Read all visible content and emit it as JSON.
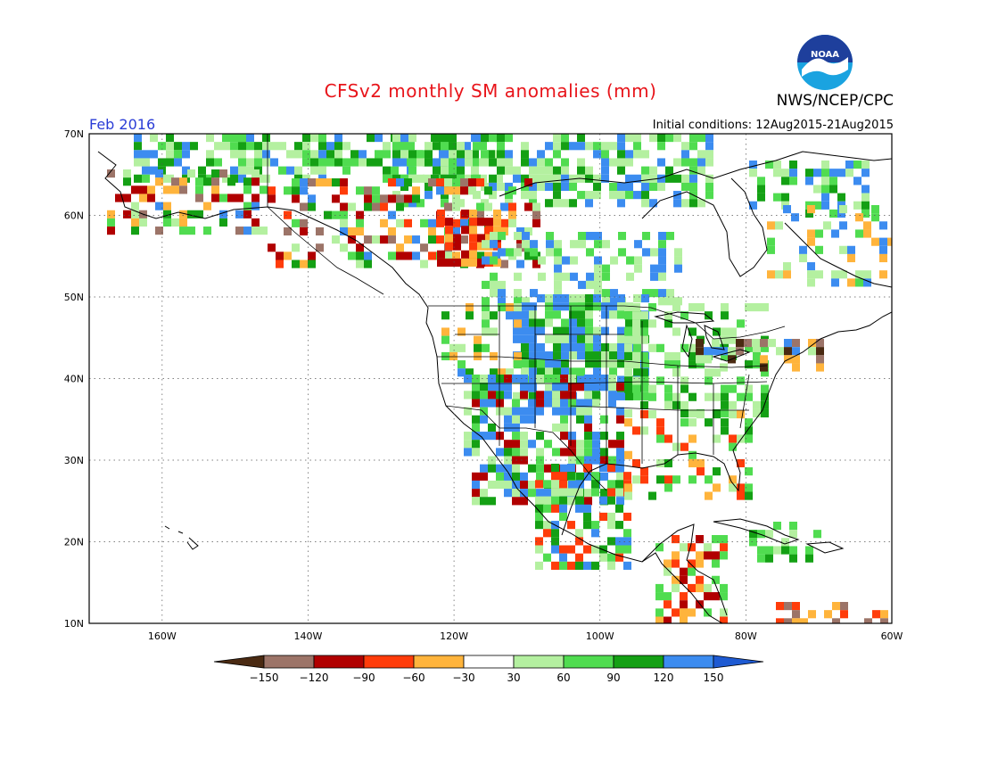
{
  "header": {
    "title": "CFSv2 monthly SM anomalies (mm)",
    "period": "Feb 2016",
    "initial_conditions": "Initial conditions: 12Aug2015-21Aug2015",
    "agency": "NWS/NCEP/CPC",
    "logo_text": "NOAA"
  },
  "map": {
    "lat_range": [
      10,
      70
    ],
    "lon_range": [
      -170,
      -60
    ],
    "lat_labels": [
      "10N",
      "20N",
      "30N",
      "40N",
      "50N",
      "60N",
      "70N"
    ],
    "lon_labels": [
      "160W",
      "140W",
      "120W",
      "100W",
      "80W",
      "60W"
    ],
    "gridlines": "dotted"
  },
  "legend": {
    "ticks": [
      "-150",
      "-120",
      "-90",
      "-60",
      "-30",
      "30",
      "60",
      "90",
      "120",
      "150"
    ],
    "colors": [
      "#4a2a12",
      "#9c7468",
      "#b10000",
      "#ff3c0a",
      "#ffb43c",
      "#ffffff",
      "#b4f0a0",
      "#50dc50",
      "#14a014",
      "#3c8cf0",
      "#1e5ad2"
    ]
  }
}
